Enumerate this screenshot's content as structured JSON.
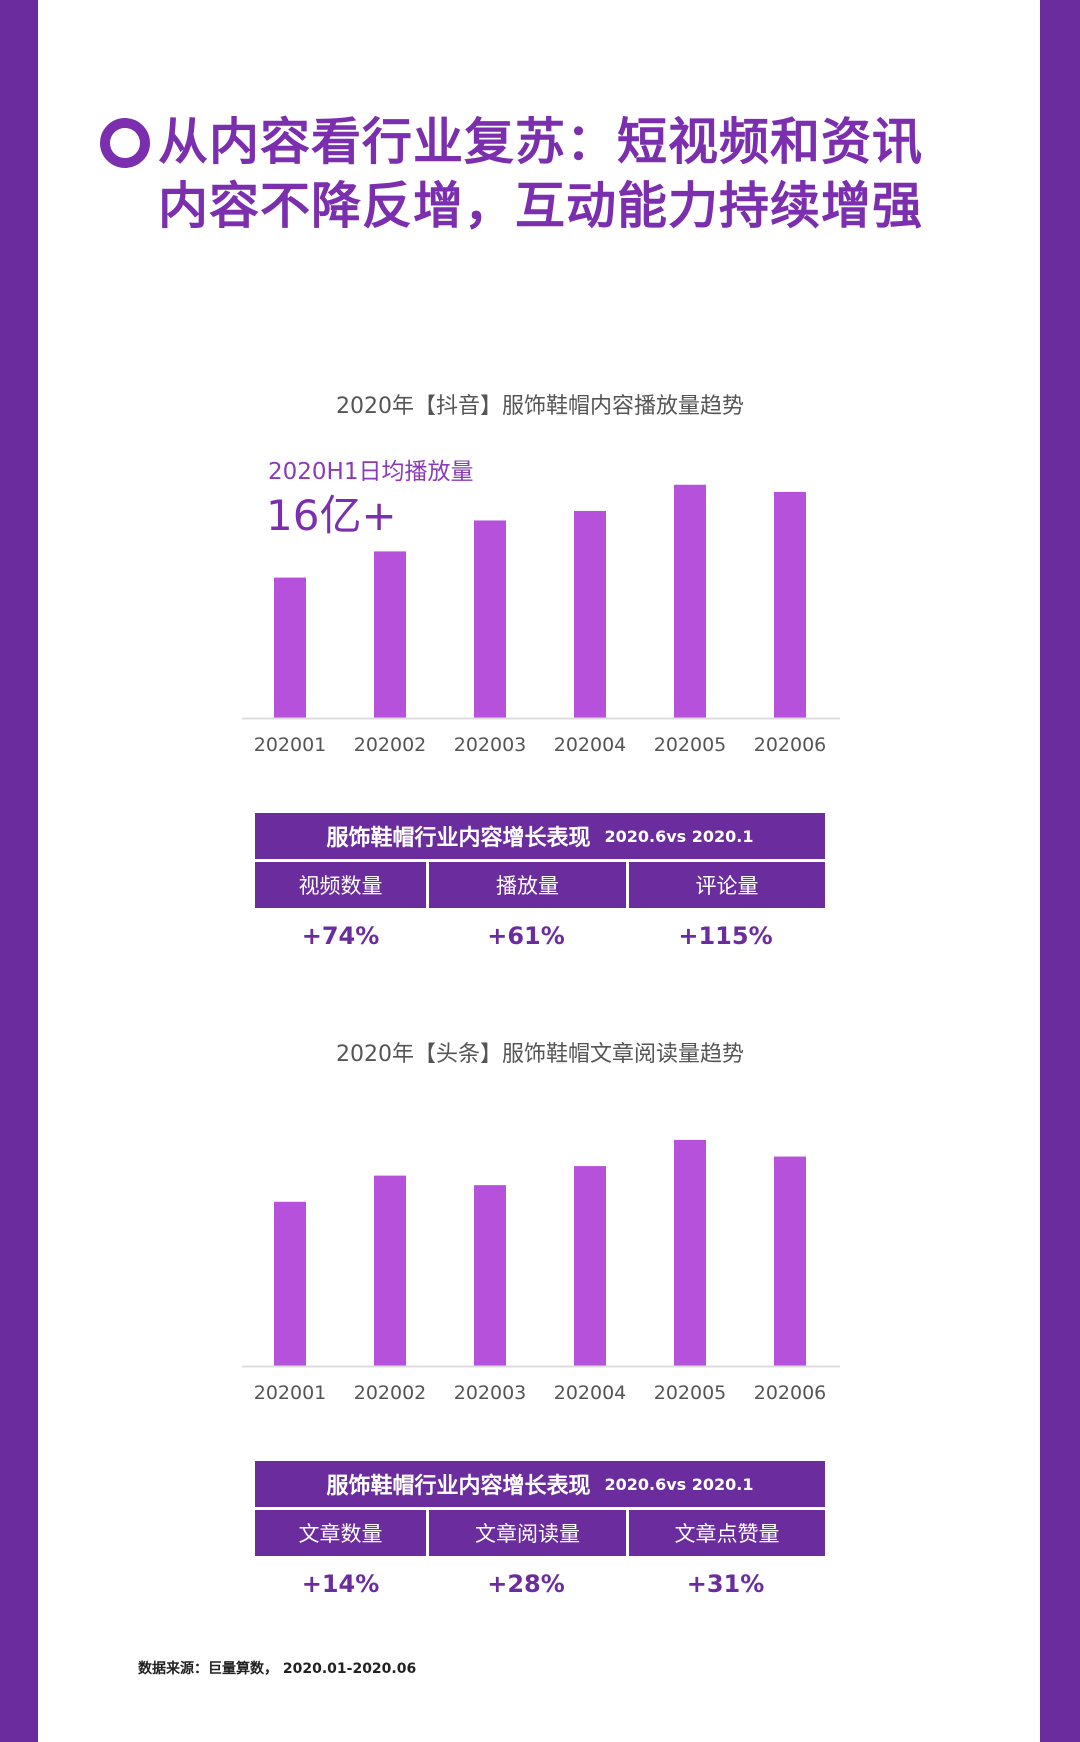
{
  "header": {
    "title_line1": "从内容看行业复苏：短视频和资讯",
    "title_line2": "内容不降反增，互动能力持续增强"
  },
  "colors": {
    "frame": "#6b2d9e",
    "title": "#7b2fae",
    "bar": "#b651dc",
    "axis": "#dddddd"
  },
  "kpi": {
    "label": "2020H1日均播放量",
    "value": "16亿+"
  },
  "chart_data": [
    {
      "type": "bar",
      "title": "2020年【抖音】服饰鞋帽内容播放量趋势",
      "categories": [
        "202001",
        "202002",
        "202003",
        "202004",
        "202005",
        "202006"
      ],
      "values": [
        59,
        70,
        83,
        87,
        98,
        95
      ],
      "ylim": [
        0,
        100
      ],
      "grid": false,
      "legend": "none"
    },
    {
      "type": "bar",
      "title": "2020年【头条】服饰鞋帽文章阅读量趋势",
      "categories": [
        "202001",
        "202002",
        "202003",
        "202004",
        "202005",
        "202006"
      ],
      "values": [
        69,
        80,
        76,
        84,
        95,
        88
      ],
      "ylim": [
        0,
        100
      ],
      "grid": false,
      "legend": "none"
    }
  ],
  "tables": [
    {
      "title": "服饰鞋帽行业内容增长表现",
      "subtitle": "2020.6vs 2020.1",
      "columns": [
        "视频数量",
        "播放量",
        "评论量"
      ],
      "values": [
        "+74%",
        "+61%",
        "+115%"
      ]
    },
    {
      "title": "服饰鞋帽行业内容增长表现",
      "subtitle": "2020.6vs 2020.1",
      "columns": [
        "文章数量",
        "文章阅读量",
        "文章点赞量"
      ],
      "values": [
        "+14%",
        "+28%",
        "+31%"
      ]
    }
  ],
  "footer": {
    "source": "数据来源：巨量算数， 2020.01-2020.06",
    "watermark": "巨量算数",
    "watermark_icon": "wechat-icon"
  }
}
